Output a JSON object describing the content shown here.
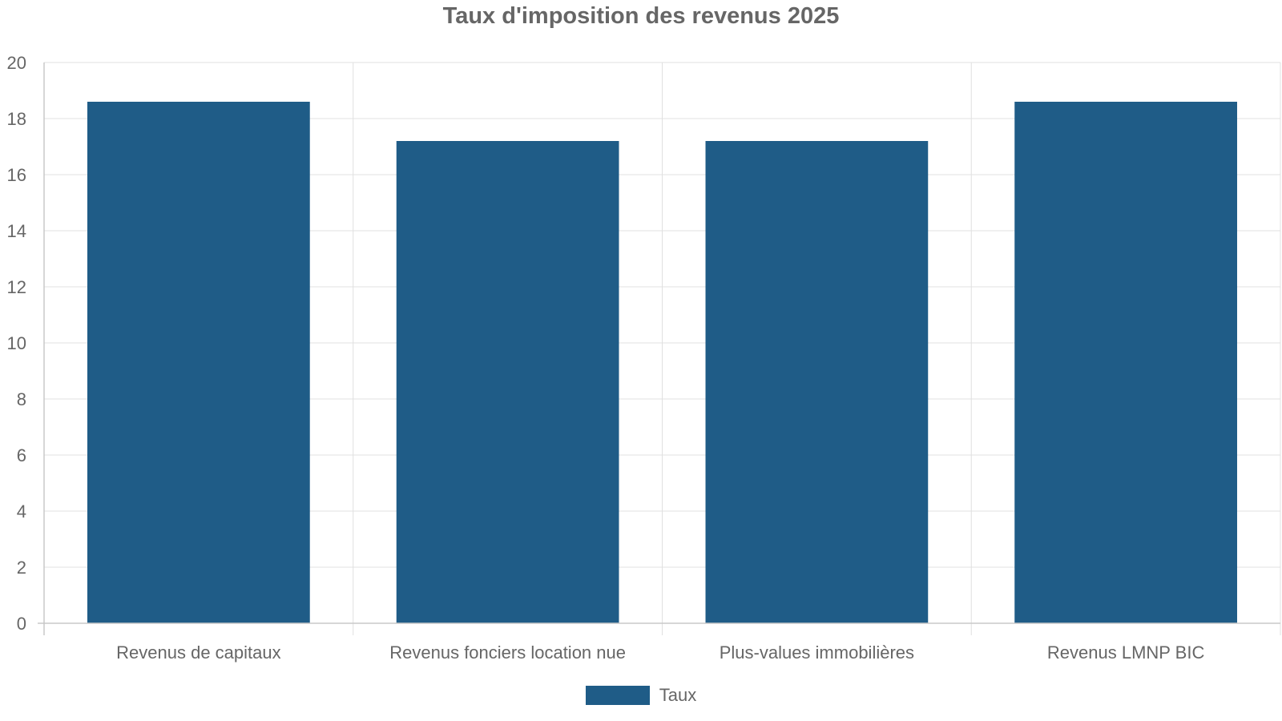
{
  "chart_data": {
    "type": "bar",
    "title": "Taux d'imposition des revenus 2025",
    "categories": [
      "Revenus de capitaux",
      "Revenus fonciers location nue",
      "Plus-values immobilières",
      "Revenus LMNP BIC"
    ],
    "series": [
      {
        "name": "Taux",
        "values": [
          18.6,
          17.2,
          17.2,
          18.6
        ],
        "color": "#1f5c87"
      }
    ],
    "ylim": [
      0,
      20
    ],
    "yticks": [
      "0",
      "2",
      "4",
      "6",
      "8",
      "10",
      "12",
      "14",
      "16",
      "18",
      "20"
    ],
    "xlabel": "",
    "ylabel": "",
    "grid": true,
    "legend_position": "bottom"
  }
}
